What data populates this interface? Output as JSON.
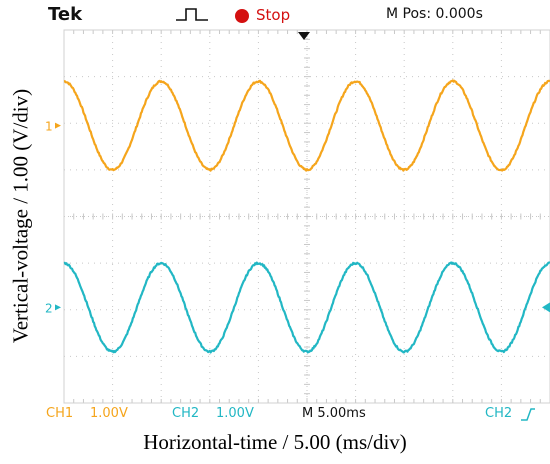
{
  "header": {
    "brand": "Tek",
    "status": "Stop",
    "m_pos": "M Pos: 0.000s"
  },
  "footer": {
    "ch1": "CH1",
    "ch1_scale": "1.00V",
    "ch2": "CH2",
    "ch2_scale": "1.00V",
    "timebase": "M 5.00ms",
    "trigger_source": "CH2"
  },
  "colors": {
    "ch1": "#f5a51c",
    "ch2": "#22b7c4",
    "status": "#d41010"
  },
  "chart_data": {
    "type": "line",
    "xlabel": "Horizontal-time / 5.00 (ms/div)",
    "ylabel": "Vertical-voltage / 1.00 (V/div)",
    "xlim": [
      -25,
      25
    ],
    "ylim": [
      -4,
      4
    ],
    "grid": true,
    "grid_divisions": {
      "x": 10,
      "y": 8
    },
    "series": [
      {
        "name": "1",
        "color": "#f5a51c",
        "amplitude": 0.95,
        "offset": 1.95,
        "period": 10.0,
        "phase_deg": -90,
        "marker_level": 1.95
      },
      {
        "name": "2",
        "color": "#22b7c4",
        "amplitude": 0.95,
        "offset": -1.95,
        "period": 10.0,
        "phase_deg": -90,
        "marker_level": -1.95
      }
    ]
  }
}
